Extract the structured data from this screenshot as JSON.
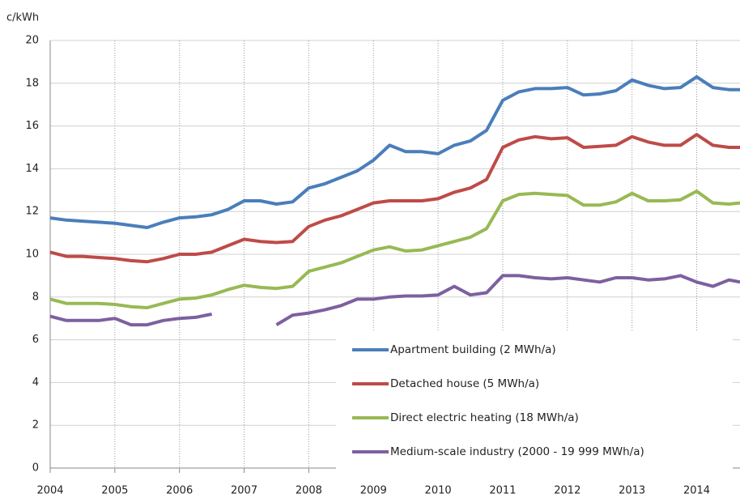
{
  "chart_data": {
    "type": "line",
    "y_label": "c/kWh",
    "x": [
      2004,
      2004.25,
      2004.5,
      2004.75,
      2005,
      2005.25,
      2005.5,
      2005.75,
      2006,
      2006.25,
      2006.5,
      2006.75,
      2007,
      2007.25,
      2007.5,
      2007.75,
      2008,
      2008.25,
      2008.5,
      2008.75,
      2009,
      2009.25,
      2009.5,
      2009.75,
      2010,
      2010.25,
      2010.5,
      2010.75,
      2011,
      2011.25,
      2011.5,
      2011.75,
      2012,
      2012.25,
      2012.5,
      2012.75,
      2013,
      2013.25,
      2013.5,
      2013.75,
      2014,
      2014.25,
      2014.5,
      2014.67
    ],
    "series": [
      {
        "name": "Apartment building (2 MWh/a)",
        "color": "#4a7ebb",
        "values": [
          11.7,
          11.6,
          11.55,
          11.5,
          11.45,
          11.35,
          11.25,
          11.5,
          11.7,
          11.75,
          11.85,
          12.1,
          12.5,
          12.5,
          12.35,
          12.45,
          13.1,
          13.3,
          13.6,
          13.9,
          14.4,
          15.1,
          14.8,
          14.8,
          14.7,
          15.1,
          15.3,
          15.8,
          17.2,
          17.6,
          17.75,
          17.75,
          17.8,
          17.45,
          17.5,
          17.65,
          18.15,
          17.9,
          17.75,
          17.8,
          18.3,
          17.8,
          17.7,
          17.7
        ]
      },
      {
        "name": "Detached house (5 MWh/a)",
        "color": "#be4b48",
        "values": [
          10.1,
          9.9,
          9.9,
          9.85,
          9.8,
          9.7,
          9.65,
          9.8,
          10.0,
          10.0,
          10.1,
          10.4,
          10.7,
          10.6,
          10.55,
          10.6,
          11.3,
          11.6,
          11.8,
          12.1,
          12.4,
          12.5,
          12.5,
          12.5,
          12.6,
          12.9,
          13.1,
          13.5,
          15.0,
          15.35,
          15.5,
          15.4,
          15.45,
          15.0,
          15.05,
          15.1,
          15.5,
          15.25,
          15.1,
          15.1,
          15.6,
          15.1,
          15.0,
          15.0
        ]
      },
      {
        "name": "Direct electric heating (18 MWh/a)",
        "color": "#98b954",
        "values": [
          7.9,
          7.7,
          7.7,
          7.7,
          7.65,
          7.55,
          7.5,
          7.7,
          7.9,
          7.95,
          8.1,
          8.35,
          8.55,
          8.45,
          8.4,
          8.5,
          9.2,
          9.4,
          9.6,
          9.9,
          10.2,
          10.35,
          10.15,
          10.2,
          10.4,
          10.6,
          10.8,
          11.2,
          12.5,
          12.8,
          12.85,
          12.8,
          12.75,
          12.3,
          12.3,
          12.45,
          12.85,
          12.5,
          12.5,
          12.55,
          12.95,
          12.4,
          12.35,
          12.4
        ]
      },
      {
        "name": "Medium-scale industry (2000 - 19 999 MWh/a)",
        "color": "#7d60a0",
        "values": [
          7.1,
          6.9,
          6.9,
          6.9,
          7.0,
          6.7,
          6.7,
          6.9,
          7.0,
          7.05,
          7.2,
          null,
          null,
          null,
          6.7,
          7.15,
          7.25,
          7.4,
          7.6,
          7.9,
          7.9,
          8.0,
          8.05,
          8.05,
          8.1,
          8.5,
          8.1,
          8.2,
          9.0,
          9.0,
          8.9,
          8.85,
          8.9,
          8.8,
          8.7,
          8.9,
          8.9,
          8.8,
          8.85,
          9.0,
          8.7,
          8.5,
          8.8,
          8.7
        ]
      }
    ],
    "xlim": [
      2004,
      2014.67
    ],
    "xticks": [
      2004,
      2005,
      2006,
      2007,
      2008,
      2009,
      2010,
      2011,
      2012,
      2013,
      2014
    ],
    "ylim": [
      0,
      20
    ],
    "yticks": [
      0,
      2,
      4,
      6,
      8,
      10,
      12,
      14,
      16,
      18,
      20
    ],
    "grid": true,
    "legend": "lower right"
  }
}
